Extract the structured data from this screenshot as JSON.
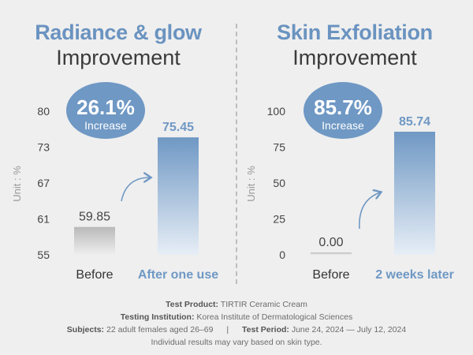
{
  "charts": [
    {
      "title_line1": "Radiance & glow",
      "title_line2": "Improvement",
      "badge_value": "26.1%",
      "badge_label": "Increase",
      "unit": "Unit : %"
    },
    {
      "title_line1": "Skin Exfoliation",
      "title_line2": "Improvement",
      "badge_value": "85.7%",
      "badge_label": "Increase",
      "unit": "Unit : %"
    }
  ],
  "chart_data": [
    {
      "type": "bar",
      "title": "Radiance & glow Improvement",
      "categories": [
        "Before",
        "After one use"
      ],
      "values": [
        59.85,
        75.45
      ],
      "value_labels": [
        "59.85",
        "75.45"
      ],
      "yticks": [
        "80",
        "73",
        "67",
        "61",
        "55"
      ],
      "ylim": [
        55,
        80
      ],
      "ylabel": "Unit : %",
      "annotation": "26.1% Increase"
    },
    {
      "type": "bar",
      "title": "Skin Exfoliation Improvement",
      "categories": [
        "Before",
        "2 weeks later"
      ],
      "values": [
        0.0,
        85.74
      ],
      "value_labels": [
        "0.00",
        "85.74"
      ],
      "yticks": [
        "100",
        "75",
        "50",
        "25",
        "0"
      ],
      "ylim": [
        0,
        100
      ],
      "ylabel": "Unit : %",
      "annotation": "85.7% Increase"
    }
  ],
  "footer": {
    "product_label": "Test Product:",
    "product_value": "TIRTIR Ceramic Cream",
    "institution_label": "Testing Institution:",
    "institution_value": "Korea Institute of Dermatological Sciences",
    "subjects_label": "Subjects:",
    "subjects_value": "22 adult females aged 26–69",
    "separator": "|",
    "period_label": "Test Period:",
    "period_value": "June 24, 2024 — July 12, 2024",
    "disclaimer": "Individual results may vary based on skin type."
  }
}
